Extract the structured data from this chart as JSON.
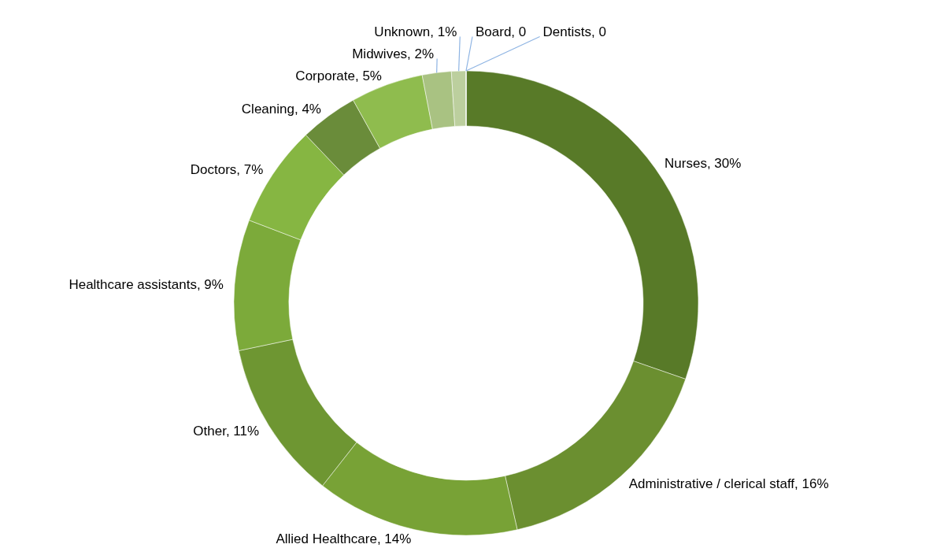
{
  "chart_data": {
    "type": "donut",
    "categories": [
      "Nurses",
      "Administrative / clerical staff",
      "Allied Healthcare",
      "Other",
      "Healthcare assistants",
      "Doctors",
      "Cleaning",
      "Corporate",
      "Midwives",
      "Unknown",
      "Board",
      "Dentists"
    ],
    "values": [
      30,
      16,
      14,
      11,
      9,
      7,
      4,
      5,
      2,
      1,
      0,
      0
    ],
    "value_labels": [
      ", 30%",
      ", 16%",
      ", 14%",
      ", 11%",
      ", 9%",
      ", 7%",
      ", 4%",
      ", 5%",
      ", 2%",
      ", 1%",
      ", 0",
      ", 0"
    ],
    "colors": [
      "#587a28",
      "#6b8f30",
      "#78a236",
      "#6e9632",
      "#7caa3a",
      "#86b642",
      "#6a8c3a",
      "#8fbc4e",
      "#a9c282",
      "#bccf9e",
      "#c9d8b2",
      "#d4e2c2"
    ]
  }
}
